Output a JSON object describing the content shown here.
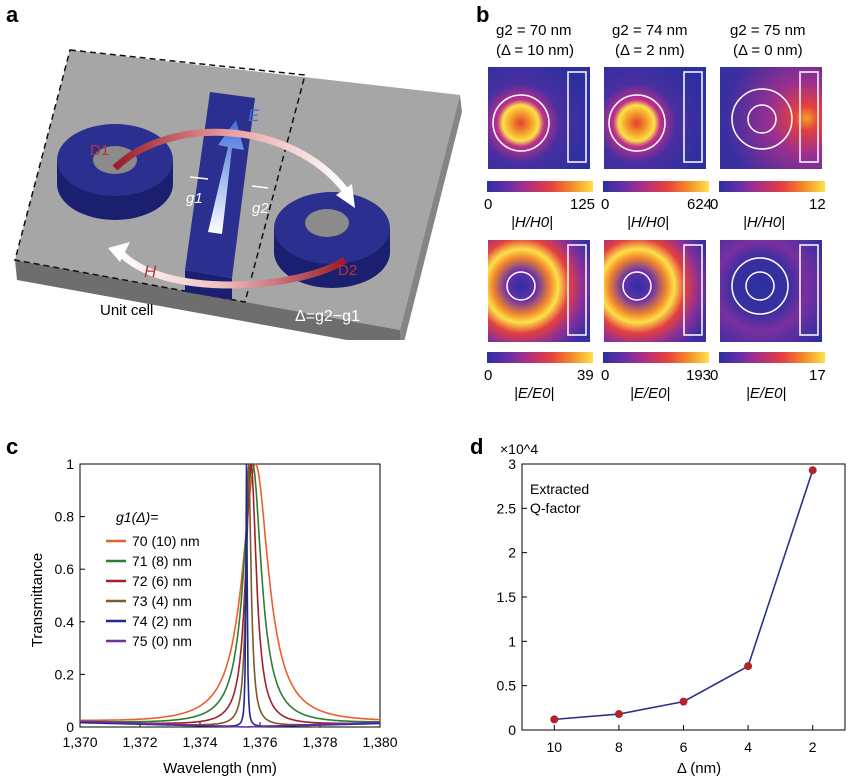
{
  "panel_a": {
    "label": "a",
    "d1": "D1",
    "d2": "D2",
    "e_field": "E",
    "h_field": "H",
    "g1": "g1",
    "g2": "g2",
    "delta_formula": "Δ=g2−g1",
    "unit_cell": "Unit cell"
  },
  "panel_b": {
    "label": "b",
    "columns": [
      {
        "g2": "g2 = 70 nm",
        "delta": "(Δ = 10 nm)"
      },
      {
        "g2": "g2 = 74 nm",
        "delta": "(Δ = 2 nm)"
      },
      {
        "g2": "g2 = 75 nm",
        "delta": "(Δ = 0 nm)"
      }
    ],
    "h_scale": {
      "min": "0",
      "maxes": [
        "125",
        "624",
        "12"
      ],
      "quantity": "|H/H0|"
    },
    "e_scale": {
      "min": "0",
      "maxes": [
        "39",
        "193",
        "17"
      ],
      "quantity": "|E/E0|"
    }
  },
  "chart_data": [
    {
      "panel": "c",
      "type": "line",
      "xlabel": "Wavelength (nm)",
      "ylabel": "Transmittance",
      "xlim": [
        1370,
        1380
      ],
      "ylim": [
        0,
        1
      ],
      "xticks": [
        "1,370",
        "1,372",
        "1,374",
        "1,376",
        "1,378",
        "1,380"
      ],
      "yticks": [
        "0",
        "0.2",
        "0.4",
        "0.6",
        "0.8",
        "1"
      ],
      "legend_title": "g1(Δ)=",
      "legend_position": "left",
      "series": [
        {
          "name": "70 (10) nm",
          "color": "#e8602c",
          "center": 1375.85,
          "fwhm": 1.05
        },
        {
          "name": "71 (8) nm",
          "color": "#2e7d32",
          "center": 1375.75,
          "fwhm": 0.72
        },
        {
          "name": "72 (6) nm",
          "color": "#a31f2a",
          "center": 1375.7,
          "fwhm": 0.43
        },
        {
          "name": "73 (4) nm",
          "color": "#7a5a2a",
          "center": 1375.62,
          "fwhm": 0.2
        },
        {
          "name": "74 (2) nm",
          "color": "#1f2a8a",
          "center": 1375.55,
          "fwhm": 0.05
        },
        {
          "name": "75 (0) nm",
          "color": "#6b2fa0",
          "center": 1375.5,
          "fwhm": 0.0
        }
      ]
    },
    {
      "panel": "d",
      "type": "line",
      "xlabel": "Δ (nm)",
      "ylabel": "",
      "multiplier": "×10^4",
      "annotation": "Extracted Q-factor",
      "x": [
        10,
        8,
        6,
        4,
        2
      ],
      "y": [
        0.12,
        0.18,
        0.32,
        0.72,
        2.93
      ],
      "xlim": [
        11,
        1
      ],
      "ylim": [
        0,
        3
      ],
      "xticks": [
        "10",
        "8",
        "6",
        "4",
        "2"
      ],
      "yticks": [
        "0",
        "0.5",
        "1",
        "1.5",
        "2",
        "2.5",
        "3"
      ],
      "line_color": "#2b2f8f",
      "marker_color": "#b0242a"
    }
  ],
  "panel_c_label": "c",
  "panel_d_label": "d"
}
